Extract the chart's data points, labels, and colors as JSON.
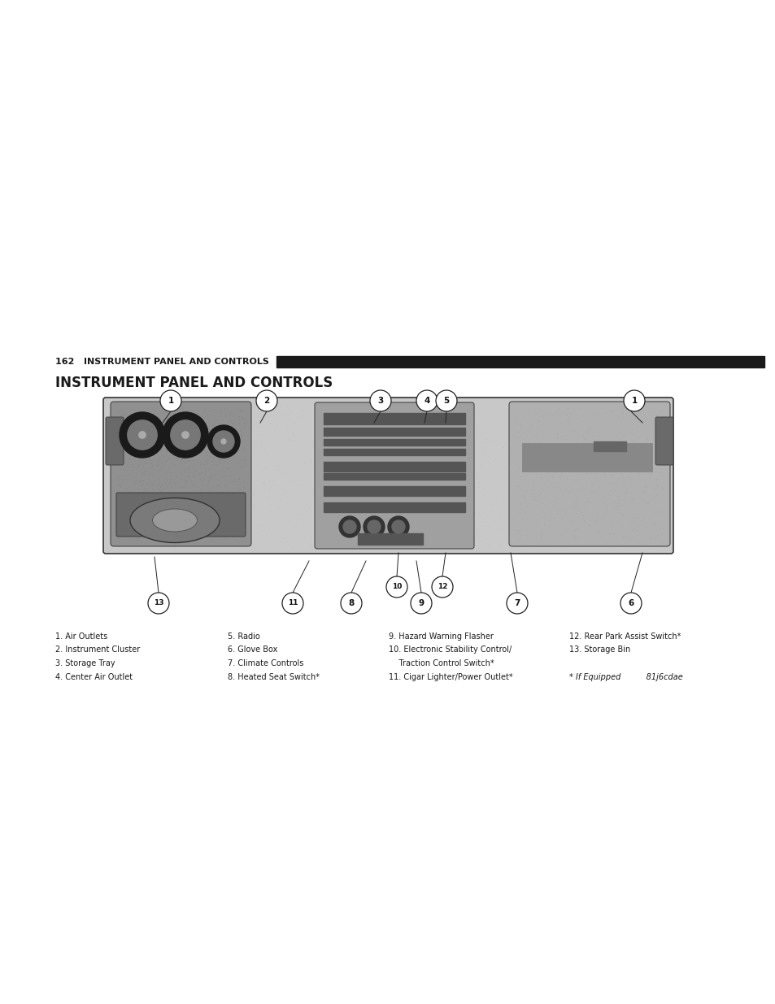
{
  "page_bg": "#ffffff",
  "header_line_color": "#1a1a1a",
  "header_text": "162   INSTRUMENT PANEL AND CONTROLS",
  "header_text_color": "#1a1a1a",
  "section_title": "INSTRUMENT PANEL AND CONTROLS",
  "section_title_color": "#1a1a1a",
  "legend_columns": [
    [
      "1. Air Outlets",
      "2. Instrument Cluster",
      "3. Storage Tray",
      "4. Center Air Outlet"
    ],
    [
      "5. Radio",
      "6. Glove Box",
      "7. Climate Controls",
      "8. Heated Seat Switch*"
    ],
    [
      "9. Hazard Warning Flasher",
      "10. Electronic Stability Control/",
      "    Traction Control Switch*",
      "11. Cigar Lighter/Power Outlet*"
    ],
    [
      "12. Rear Park Assist Switch*",
      "13. Storage Bin",
      "",
      "* If Equipped          81j6cdae"
    ]
  ]
}
